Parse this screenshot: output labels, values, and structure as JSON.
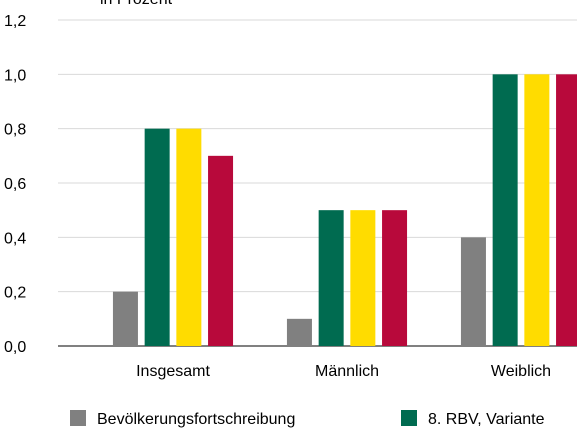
{
  "chart_data": {
    "type": "bar",
    "subtitle": "in Prozent",
    "categories": [
      "Insgesamt",
      "Männlich",
      "Weiblich"
    ],
    "series": [
      {
        "name": "Bevölkerungsfortschreibung",
        "color": "#808080",
        "values": [
          0.2,
          0.1,
          0.4
        ]
      },
      {
        "name": "8. RBV, Variante",
        "color": "#006b50",
        "values": [
          0.8,
          0.5,
          1.0
        ]
      },
      {
        "color": "#ffdc00",
        "values": [
          0.8,
          0.5,
          1.0
        ]
      },
      {
        "color": "#b8093b",
        "values": [
          0.7,
          0.5,
          1.0
        ]
      }
    ],
    "ylim": [
      0,
      1.2
    ],
    "yticks": [
      {
        "value": 0,
        "label": "0,0"
      },
      {
        "value": 0.2,
        "label": "0,2"
      },
      {
        "value": 0.4,
        "label": "0,4"
      },
      {
        "value": 0.6,
        "label": "0,6"
      },
      {
        "value": 0.8,
        "label": "0,8"
      },
      {
        "value": 1.0,
        "label": "1,0"
      },
      {
        "value": 1.2,
        "label": "1,2"
      }
    ],
    "grid": true
  }
}
